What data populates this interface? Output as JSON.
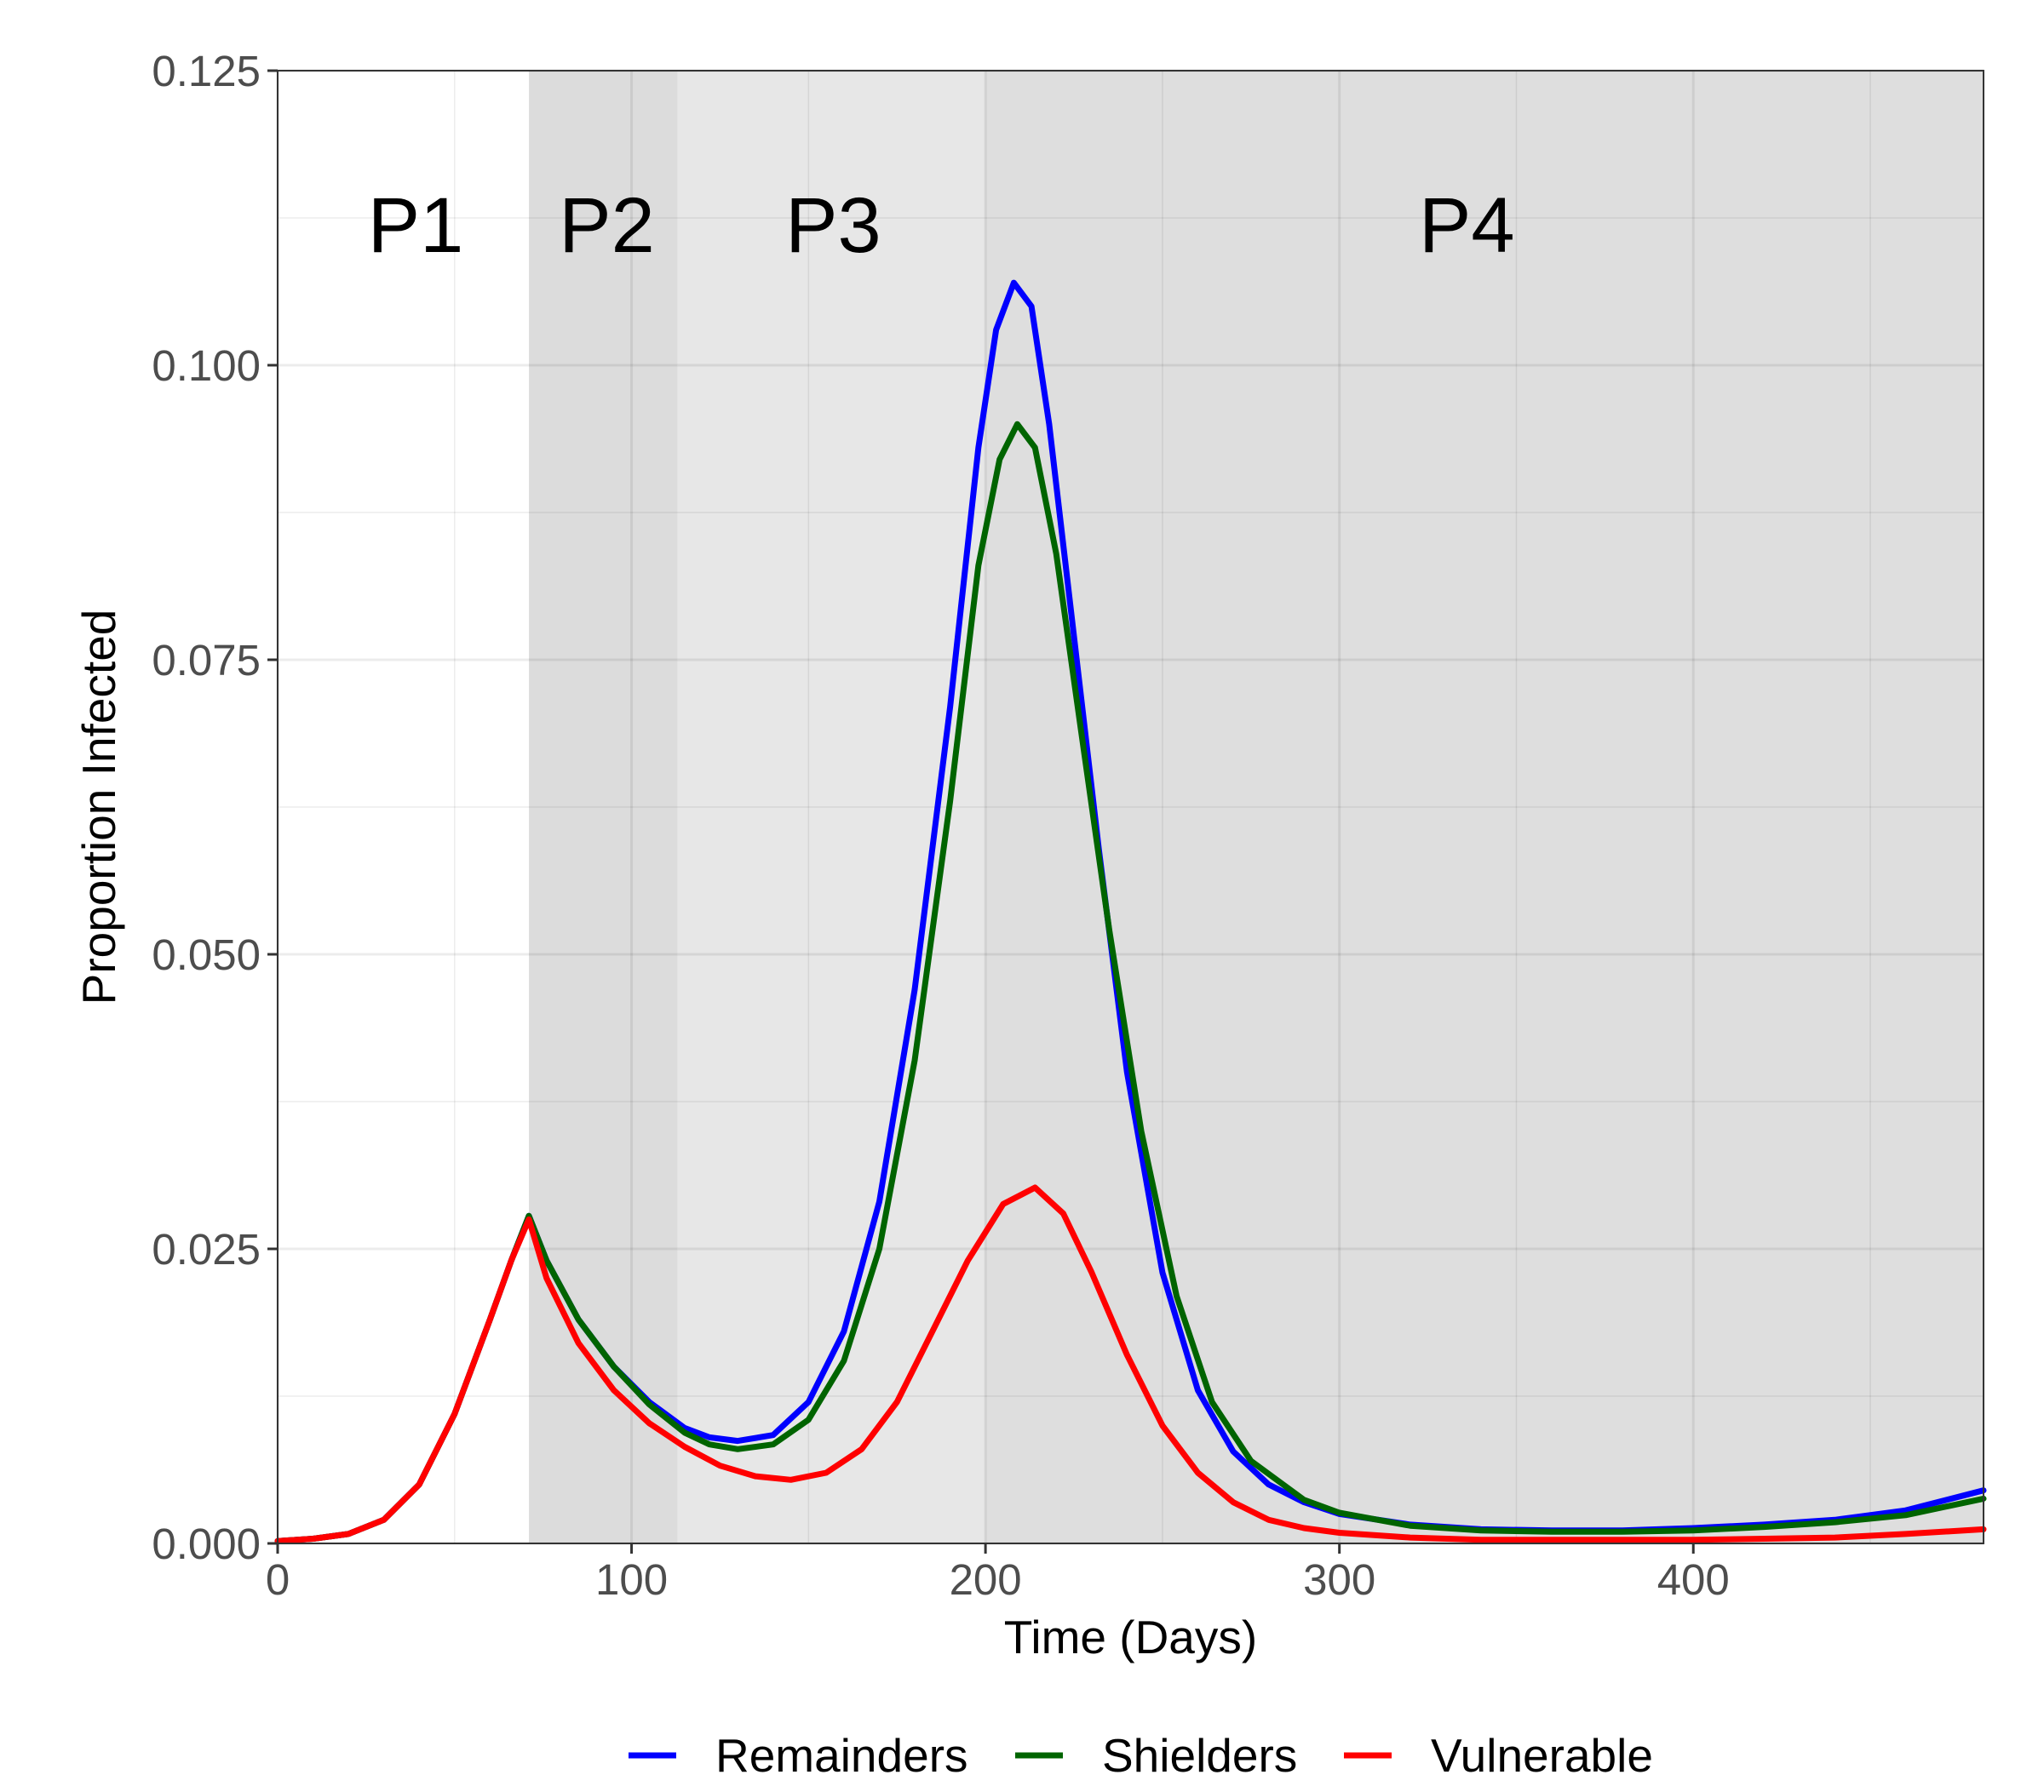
{
  "chart_data": {
    "type": "line",
    "xlabel": "Time (Days)",
    "ylabel": "Proportion Infected",
    "xlim": [
      0,
      482
    ],
    "ylim": [
      0,
      0.125
    ],
    "x_ticks": [
      0,
      100,
      200,
      300,
      400
    ],
    "x_tick_labels": [
      "0",
      "100",
      "200",
      "300",
      "400"
    ],
    "y_ticks": [
      0,
      0.025,
      0.05,
      0.075,
      0.1,
      0.125
    ],
    "y_tick_labels": [
      "0.000",
      "0.025",
      "0.050",
      "0.075",
      "0.100",
      "0.125"
    ],
    "grid": true,
    "legend_position": "bottom",
    "phases": [
      {
        "label": "P1",
        "start": 0,
        "end": 71,
        "fill": "#ffffff"
      },
      {
        "label": "P2",
        "start": 71,
        "end": 113,
        "fill": "#dcdcdc"
      },
      {
        "label": "P3",
        "start": 113,
        "end": 200,
        "fill": "#e7e7e7"
      },
      {
        "label": "P4",
        "start": 200,
        "end": 482,
        "fill": "#dedede"
      }
    ],
    "phase_label_positions": [
      39,
      93,
      157,
      336
    ],
    "phase_label_y": 0.112,
    "series": [
      {
        "name": "Remainders",
        "color": "#0000ff",
        "points": [
          [
            0,
            0.0002
          ],
          [
            10,
            0.0004
          ],
          [
            20,
            0.0008
          ],
          [
            30,
            0.002
          ],
          [
            40,
            0.005
          ],
          [
            50,
            0.011
          ],
          [
            60,
            0.019
          ],
          [
            66,
            0.024
          ],
          [
            71,
            0.0278
          ],
          [
            76,
            0.024
          ],
          [
            85,
            0.019
          ],
          [
            95,
            0.015
          ],
          [
            105,
            0.012
          ],
          [
            115,
            0.0098
          ],
          [
            122,
            0.009
          ],
          [
            130,
            0.0087
          ],
          [
            140,
            0.0092
          ],
          [
            150,
            0.012
          ],
          [
            160,
            0.018
          ],
          [
            170,
            0.029
          ],
          [
            180,
            0.047
          ],
          [
            190,
            0.071
          ],
          [
            198,
            0.093
          ],
          [
            203,
            0.103
          ],
          [
            208,
            0.107
          ],
          [
            213,
            0.105
          ],
          [
            218,
            0.095
          ],
          [
            225,
            0.077
          ],
          [
            232,
            0.059
          ],
          [
            240,
            0.04
          ],
          [
            250,
            0.023
          ],
          [
            260,
            0.013
          ],
          [
            270,
            0.0078
          ],
          [
            280,
            0.005
          ],
          [
            290,
            0.0035
          ],
          [
            300,
            0.0025
          ],
          [
            320,
            0.0016
          ],
          [
            340,
            0.0012
          ],
          [
            360,
            0.0011
          ],
          [
            380,
            0.0011
          ],
          [
            400,
            0.0013
          ],
          [
            420,
            0.0016
          ],
          [
            440,
            0.002
          ],
          [
            460,
            0.0028
          ],
          [
            482,
            0.0045
          ]
        ]
      },
      {
        "name": "Shielders",
        "color": "#006400",
        "points": [
          [
            0,
            0.0002
          ],
          [
            10,
            0.0004
          ],
          [
            20,
            0.0008
          ],
          [
            30,
            0.002
          ],
          [
            40,
            0.005
          ],
          [
            50,
            0.011
          ],
          [
            60,
            0.019
          ],
          [
            66,
            0.024
          ],
          [
            71,
            0.0278
          ],
          [
            76,
            0.024
          ],
          [
            85,
            0.019
          ],
          [
            95,
            0.015
          ],
          [
            105,
            0.0118
          ],
          [
            115,
            0.0094
          ],
          [
            122,
            0.0084
          ],
          [
            130,
            0.008
          ],
          [
            140,
            0.0084
          ],
          [
            150,
            0.0105
          ],
          [
            160,
            0.0155
          ],
          [
            170,
            0.025
          ],
          [
            180,
            0.041
          ],
          [
            190,
            0.063
          ],
          [
            198,
            0.083
          ],
          [
            204,
            0.092
          ],
          [
            209,
            0.095
          ],
          [
            214,
            0.093
          ],
          [
            220,
            0.084
          ],
          [
            227,
            0.069
          ],
          [
            235,
            0.052
          ],
          [
            244,
            0.035
          ],
          [
            254,
            0.021
          ],
          [
            264,
            0.012
          ],
          [
            275,
            0.007
          ],
          [
            290,
            0.0037
          ],
          [
            300,
            0.0026
          ],
          [
            320,
            0.0015
          ],
          [
            340,
            0.0011
          ],
          [
            360,
            0.001
          ],
          [
            380,
            0.001
          ],
          [
            400,
            0.0011
          ],
          [
            420,
            0.0014
          ],
          [
            440,
            0.0018
          ],
          [
            460,
            0.0024
          ],
          [
            482,
            0.0038
          ]
        ]
      },
      {
        "name": "Vulnerable",
        "color": "#ff0000",
        "points": [
          [
            0,
            0.0002
          ],
          [
            10,
            0.0004
          ],
          [
            20,
            0.0008
          ],
          [
            30,
            0.002
          ],
          [
            40,
            0.005
          ],
          [
            50,
            0.011
          ],
          [
            60,
            0.019
          ],
          [
            66,
            0.024
          ],
          [
            71,
            0.0275
          ],
          [
            76,
            0.0225
          ],
          [
            85,
            0.017
          ],
          [
            95,
            0.013
          ],
          [
            105,
            0.0102
          ],
          [
            115,
            0.0082
          ],
          [
            125,
            0.0066
          ],
          [
            135,
            0.0057
          ],
          [
            145,
            0.0054
          ],
          [
            155,
            0.006
          ],
          [
            165,
            0.008
          ],
          [
            175,
            0.012
          ],
          [
            185,
            0.018
          ],
          [
            195,
            0.024
          ],
          [
            205,
            0.0288
          ],
          [
            214,
            0.0302
          ],
          [
            222,
            0.028
          ],
          [
            230,
            0.023
          ],
          [
            240,
            0.016
          ],
          [
            250,
            0.01
          ],
          [
            260,
            0.006
          ],
          [
            270,
            0.0035
          ],
          [
            280,
            0.002
          ],
          [
            290,
            0.0013
          ],
          [
            300,
            0.0009
          ],
          [
            320,
            0.0005
          ],
          [
            340,
            0.0003
          ],
          [
            360,
            0.0003
          ],
          [
            380,
            0.0003
          ],
          [
            400,
            0.0003
          ],
          [
            420,
            0.0004
          ],
          [
            440,
            0.0005
          ],
          [
            460,
            0.0008
          ],
          [
            482,
            0.0012
          ]
        ]
      }
    ]
  }
}
